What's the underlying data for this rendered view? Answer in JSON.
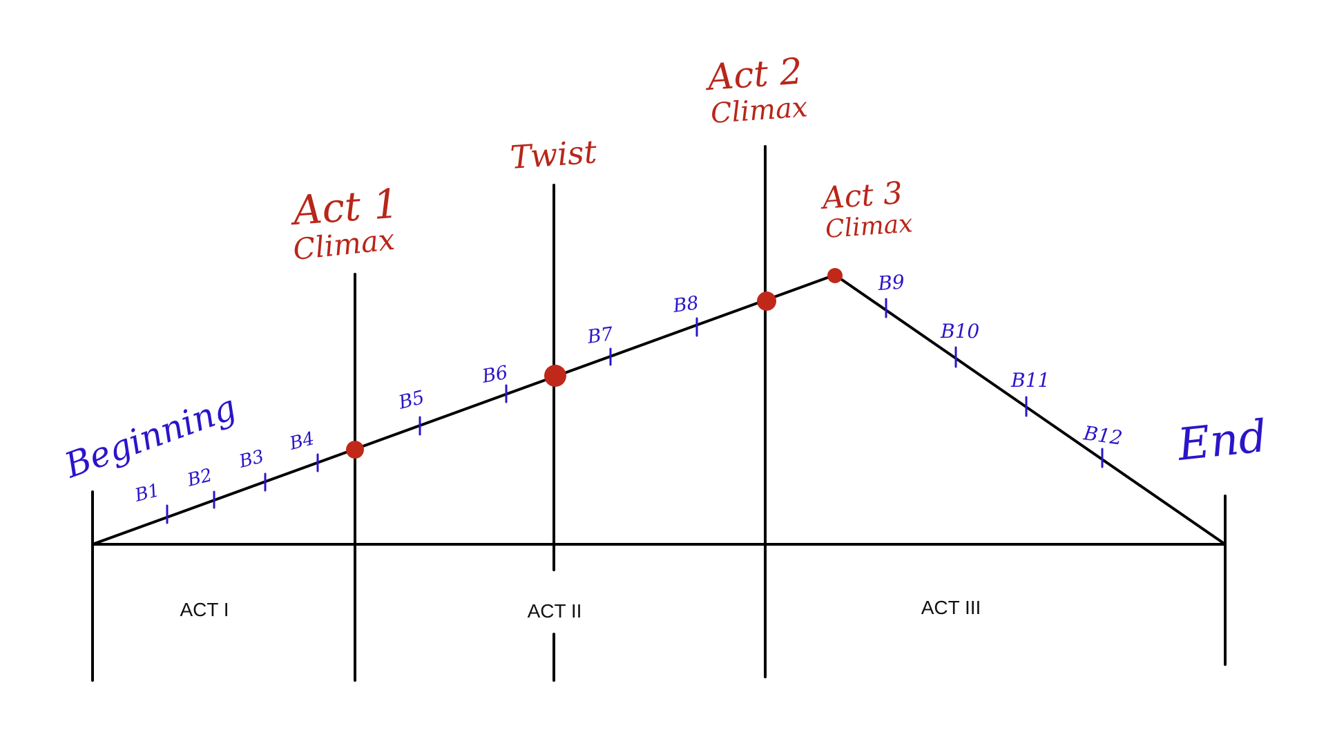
{
  "colors": {
    "line": "#000000",
    "annotation_red": "#b8261a",
    "beat_blue": "#2a15c9",
    "background": "#ffffff"
  },
  "labels": {
    "beginning": "Beginning",
    "end": "End",
    "twist": "Twist",
    "act1": {
      "line1": "Act 1",
      "line2": "Climax"
    },
    "act2": {
      "line1": "Act 2",
      "line2": "Climax"
    },
    "act3": {
      "line1": "Act 3",
      "line2": "Climax"
    }
  },
  "acts": [
    "ACT I",
    "ACT II",
    "ACT III"
  ],
  "beats": [
    "B1",
    "B2",
    "B3",
    "B4",
    "B5",
    "B6",
    "B7",
    "B8",
    "B9",
    "B10",
    "B11",
    "B12"
  ]
}
